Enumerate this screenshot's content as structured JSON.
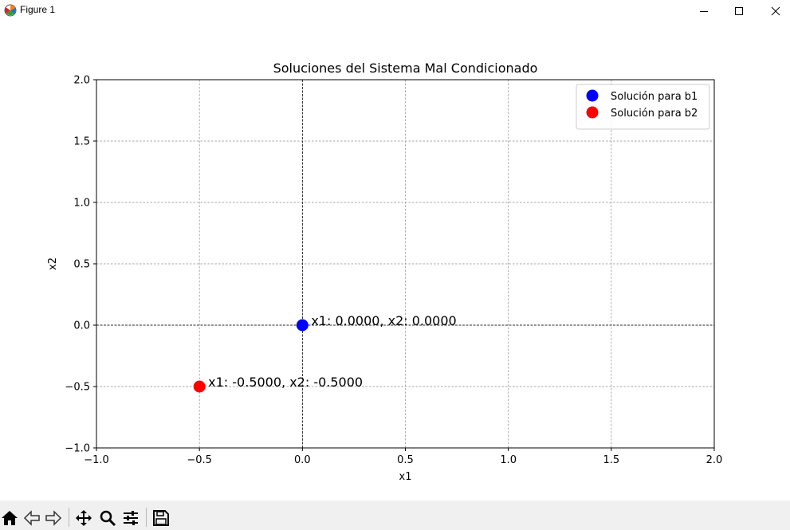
{
  "window": {
    "title": "Figure 1",
    "icons": [
      "matplotlib-icon",
      "minimize-icon",
      "maximize-icon",
      "close-icon"
    ]
  },
  "toolbar": {
    "buttons": [
      {
        "name": "home",
        "icon": "home-icon"
      },
      {
        "name": "back",
        "icon": "back-arrow-icon"
      },
      {
        "name": "forward",
        "icon": "forward-arrow-icon"
      },
      {
        "name": "pan",
        "icon": "move-icon"
      },
      {
        "name": "zoom",
        "icon": "zoom-icon"
      },
      {
        "name": "subplots",
        "icon": "sliders-icon"
      },
      {
        "name": "save",
        "icon": "save-icon"
      }
    ]
  },
  "chart_data": {
    "type": "scatter",
    "title": "Soluciones del Sistema Mal Condicionado",
    "xlabel": "x1",
    "ylabel": "x2",
    "xlim": [
      -1.0,
      2.0
    ],
    "ylim": [
      -1.0,
      2.0
    ],
    "xticks": [
      -1.0,
      -0.5,
      0.0,
      0.5,
      1.0,
      1.5,
      2.0
    ],
    "yticks": [
      -1.0,
      -0.5,
      0.0,
      0.5,
      1.0,
      1.5,
      2.0
    ],
    "xtick_labels": [
      "−1.0",
      "−0.5",
      "0.0",
      "0.5",
      "1.0",
      "1.5",
      "2.0"
    ],
    "ytick_labels": [
      "−1.0",
      "−0.5",
      "0.0",
      "0.5",
      "1.0",
      "1.5",
      "2.0"
    ],
    "grid": true,
    "reference_lines": {
      "x": 0,
      "y": 0
    },
    "legend_position": "upper right",
    "series": [
      {
        "name": "Solución para b1",
        "color": "#0000ff",
        "points": [
          {
            "x": 0.0,
            "y": 0.0
          }
        ],
        "annotation": "x1: 0.0000, x2: 0.0000"
      },
      {
        "name": "Solución para b2",
        "color": "#ff0000",
        "points": [
          {
            "x": -0.5,
            "y": -0.5
          }
        ],
        "annotation": "x1: -0.5000, x2: -0.5000"
      }
    ]
  }
}
